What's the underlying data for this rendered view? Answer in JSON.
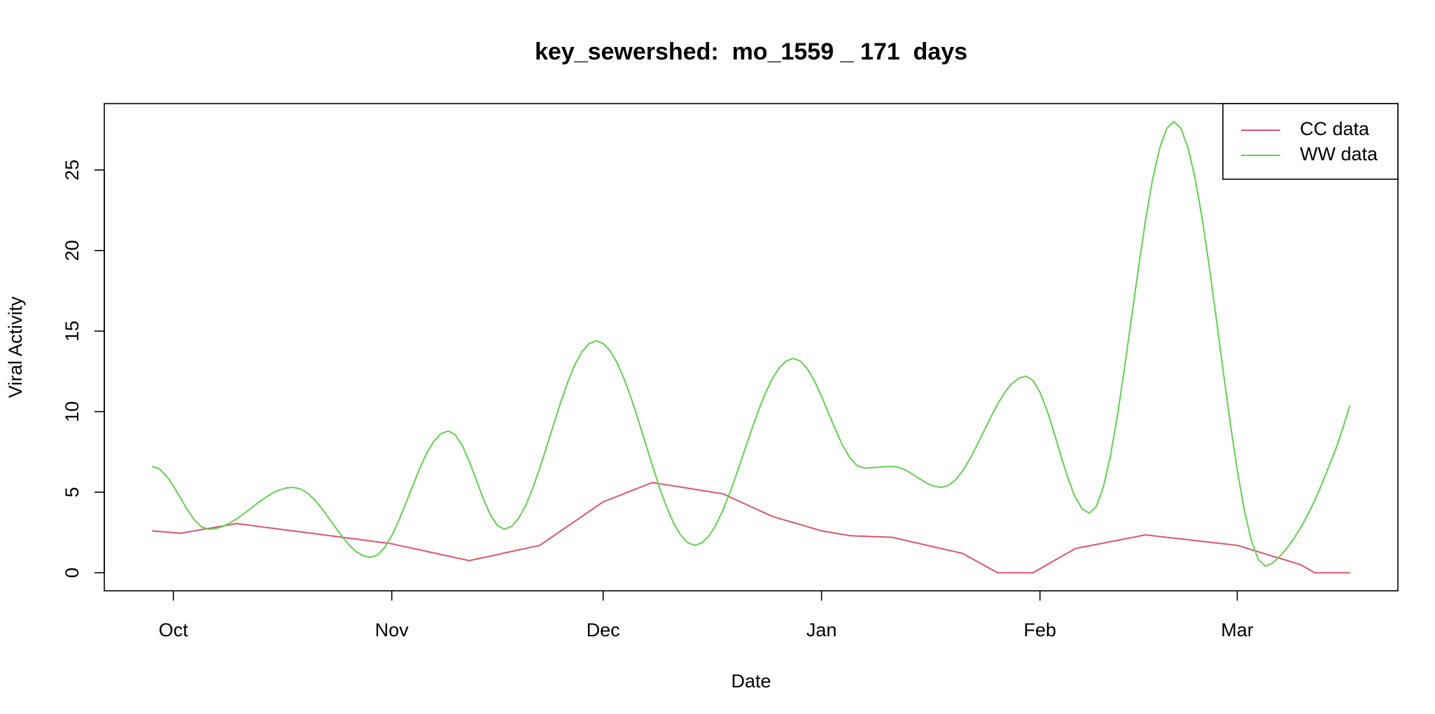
{
  "chart_data": {
    "type": "line",
    "title": "key_sewershed:  mo_1559 _ 171  days",
    "x_label": "Date",
    "y_label": "Viral Activity",
    "categories": [
      null,
      null,
      null,
      "Oct",
      null,
      null,
      null,
      null,
      null,
      null,
      null,
      null,
      null,
      null,
      null,
      null,
      null,
      null,
      null,
      null,
      null,
      null,
      null,
      null,
      null,
      null,
      null,
      null,
      null,
      null,
      null,
      null,
      null,
      null,
      "Nov",
      null,
      null,
      null,
      null,
      null,
      null,
      null,
      null,
      null,
      null,
      null,
      null,
      null,
      null,
      null,
      null,
      null,
      null,
      null,
      null,
      null,
      null,
      null,
      null,
      null,
      null,
      null,
      null,
      null,
      "Dec",
      null,
      null,
      null,
      null,
      null,
      null,
      null,
      null,
      null,
      null,
      null,
      null,
      null,
      null,
      null,
      null,
      null,
      null,
      null,
      null,
      null,
      null,
      null,
      null,
      null,
      null,
      null,
      null,
      null,
      null,
      "Jan",
      null,
      null,
      null,
      null,
      null,
      null,
      null,
      null,
      null,
      null,
      null,
      null,
      null,
      null,
      null,
      null,
      null,
      null,
      null,
      null,
      null,
      null,
      null,
      null,
      null,
      null,
      null,
      null,
      null,
      null,
      "Feb",
      null,
      null,
      null,
      null,
      null,
      null,
      null,
      null,
      null,
      null,
      null,
      null,
      null,
      null,
      null,
      null,
      null,
      null,
      null,
      null,
      null,
      null,
      null,
      null,
      null,
      null,
      null,
      "Mar",
      null,
      null,
      null,
      null,
      null,
      null,
      null,
      null,
      null,
      null,
      null,
      null,
      null,
      null,
      null,
      null
    ],
    "series": [
      {
        "name": "CC data",
        "color": "#DF536B",
        "values": [
          2.6,
          2.56,
          2.53,
          2.49,
          2.45,
          2.53,
          2.6,
          2.68,
          2.75,
          2.83,
          2.9,
          2.98,
          3.05,
          2.99,
          2.94,
          2.88,
          2.82,
          2.77,
          2.71,
          2.65,
          2.6,
          2.54,
          2.48,
          2.43,
          2.37,
          2.31,
          2.26,
          2.2,
          2.14,
          2.09,
          2.03,
          1.97,
          1.91,
          1.86,
          1.8,
          1.7,
          1.61,
          1.51,
          1.42,
          1.32,
          1.23,
          1.13,
          1.04,
          0.94,
          0.85,
          0.75,
          0.85,
          0.94,
          1.04,
          1.13,
          1.23,
          1.32,
          1.42,
          1.51,
          1.61,
          1.7,
          2.0,
          2.3,
          2.6,
          2.9,
          3.2,
          3.5,
          3.8,
          4.1,
          4.4,
          4.57,
          4.74,
          4.91,
          5.09,
          5.26,
          5.43,
          5.6,
          5.53,
          5.46,
          5.39,
          5.32,
          5.25,
          5.18,
          5.11,
          5.04,
          4.97,
          4.9,
          4.7,
          4.5,
          4.3,
          4.1,
          3.9,
          3.7,
          3.5,
          3.37,
          3.24,
          3.11,
          2.99,
          2.86,
          2.73,
          2.6,
          2.53,
          2.45,
          2.38,
          2.3,
          2.28,
          2.27,
          2.25,
          2.23,
          2.22,
          2.2,
          2.1,
          2.0,
          1.9,
          1.8,
          1.7,
          1.6,
          1.5,
          1.4,
          1.3,
          1.2,
          0.96,
          0.72,
          0.48,
          0.24,
          0,
          0,
          0,
          0,
          0,
          0,
          0.25,
          0.5,
          0.75,
          1.0,
          1.25,
          1.5,
          1.59,
          1.67,
          1.76,
          1.84,
          1.93,
          2.01,
          2.1,
          2.18,
          2.27,
          2.35,
          2.3,
          2.25,
          2.2,
          2.15,
          2.1,
          2.05,
          2.0,
          1.95,
          1.9,
          1.85,
          1.8,
          1.75,
          1.7,
          1.57,
          1.43,
          1.3,
          1.17,
          1.03,
          0.9,
          0.77,
          0.63,
          0.5,
          0.25,
          0,
          0,
          0,
          0,
          0,
          0
        ]
      },
      {
        "name": "WW data",
        "color": "#61D04F",
        "values": [
          6.6,
          6.45,
          6.03,
          5.39,
          4.65,
          3.91,
          3.27,
          2.85,
          2.7,
          2.74,
          2.87,
          3.08,
          3.35,
          3.66,
          4.0,
          4.34,
          4.65,
          4.92,
          5.13,
          5.26,
          5.3,
          5.21,
          4.96,
          4.55,
          4.03,
          3.43,
          2.82,
          2.22,
          1.7,
          1.29,
          1.04,
          0.95,
          1.11,
          1.57,
          2.3,
          3.24,
          4.32,
          5.43,
          6.51,
          7.45,
          8.18,
          8.64,
          8.8,
          8.57,
          7.91,
          6.92,
          5.75,
          4.58,
          3.59,
          2.93,
          2.7,
          2.88,
          3.38,
          4.17,
          5.23,
          6.48,
          7.85,
          9.25,
          10.62,
          11.87,
          12.93,
          13.72,
          14.22,
          14.4,
          14.23,
          13.77,
          13.02,
          12.01,
          10.81,
          9.46,
          8.05,
          6.64,
          5.29,
          4.09,
          3.08,
          2.33,
          1.87,
          1.7,
          1.85,
          2.28,
          2.96,
          3.88,
          4.98,
          6.21,
          7.5,
          8.79,
          10.02,
          11.12,
          12.04,
          12.72,
          13.15,
          13.3,
          13.14,
          12.65,
          11.9,
          10.95,
          9.9,
          8.85,
          7.9,
          7.15,
          6.66,
          6.5,
          6.52,
          6.55,
          6.58,
          6.6,
          6.54,
          6.36,
          6.09,
          5.81,
          5.54,
          5.37,
          5.3,
          5.42,
          5.76,
          6.31,
          7.03,
          7.86,
          8.75,
          9.64,
          10.48,
          11.19,
          11.74,
          12.08,
          12.2,
          11.95,
          11.21,
          10.08,
          8.69,
          7.21,
          5.83,
          4.69,
          3.96,
          3.7,
          4.11,
          5.33,
          7.25,
          9.78,
          12.72,
          15.85,
          18.98,
          21.93,
          24.45,
          26.37,
          27.59,
          28,
          27.59,
          26.4,
          24.52,
          22.04,
          19.09,
          15.86,
          12.54,
          9.31,
          6.36,
          3.88,
          2.0,
          0.81,
          0.4,
          0.6,
          1.0,
          1.5,
          2.1,
          2.8,
          3.6,
          4.5,
          5.5,
          6.6,
          7.7,
          9.0,
          10.4
        ]
      }
    ],
    "ylim": [
      -1.12,
      29.12
    ],
    "yticks": [
      0,
      5,
      10,
      15,
      20,
      25
    ],
    "legend": "topright"
  }
}
